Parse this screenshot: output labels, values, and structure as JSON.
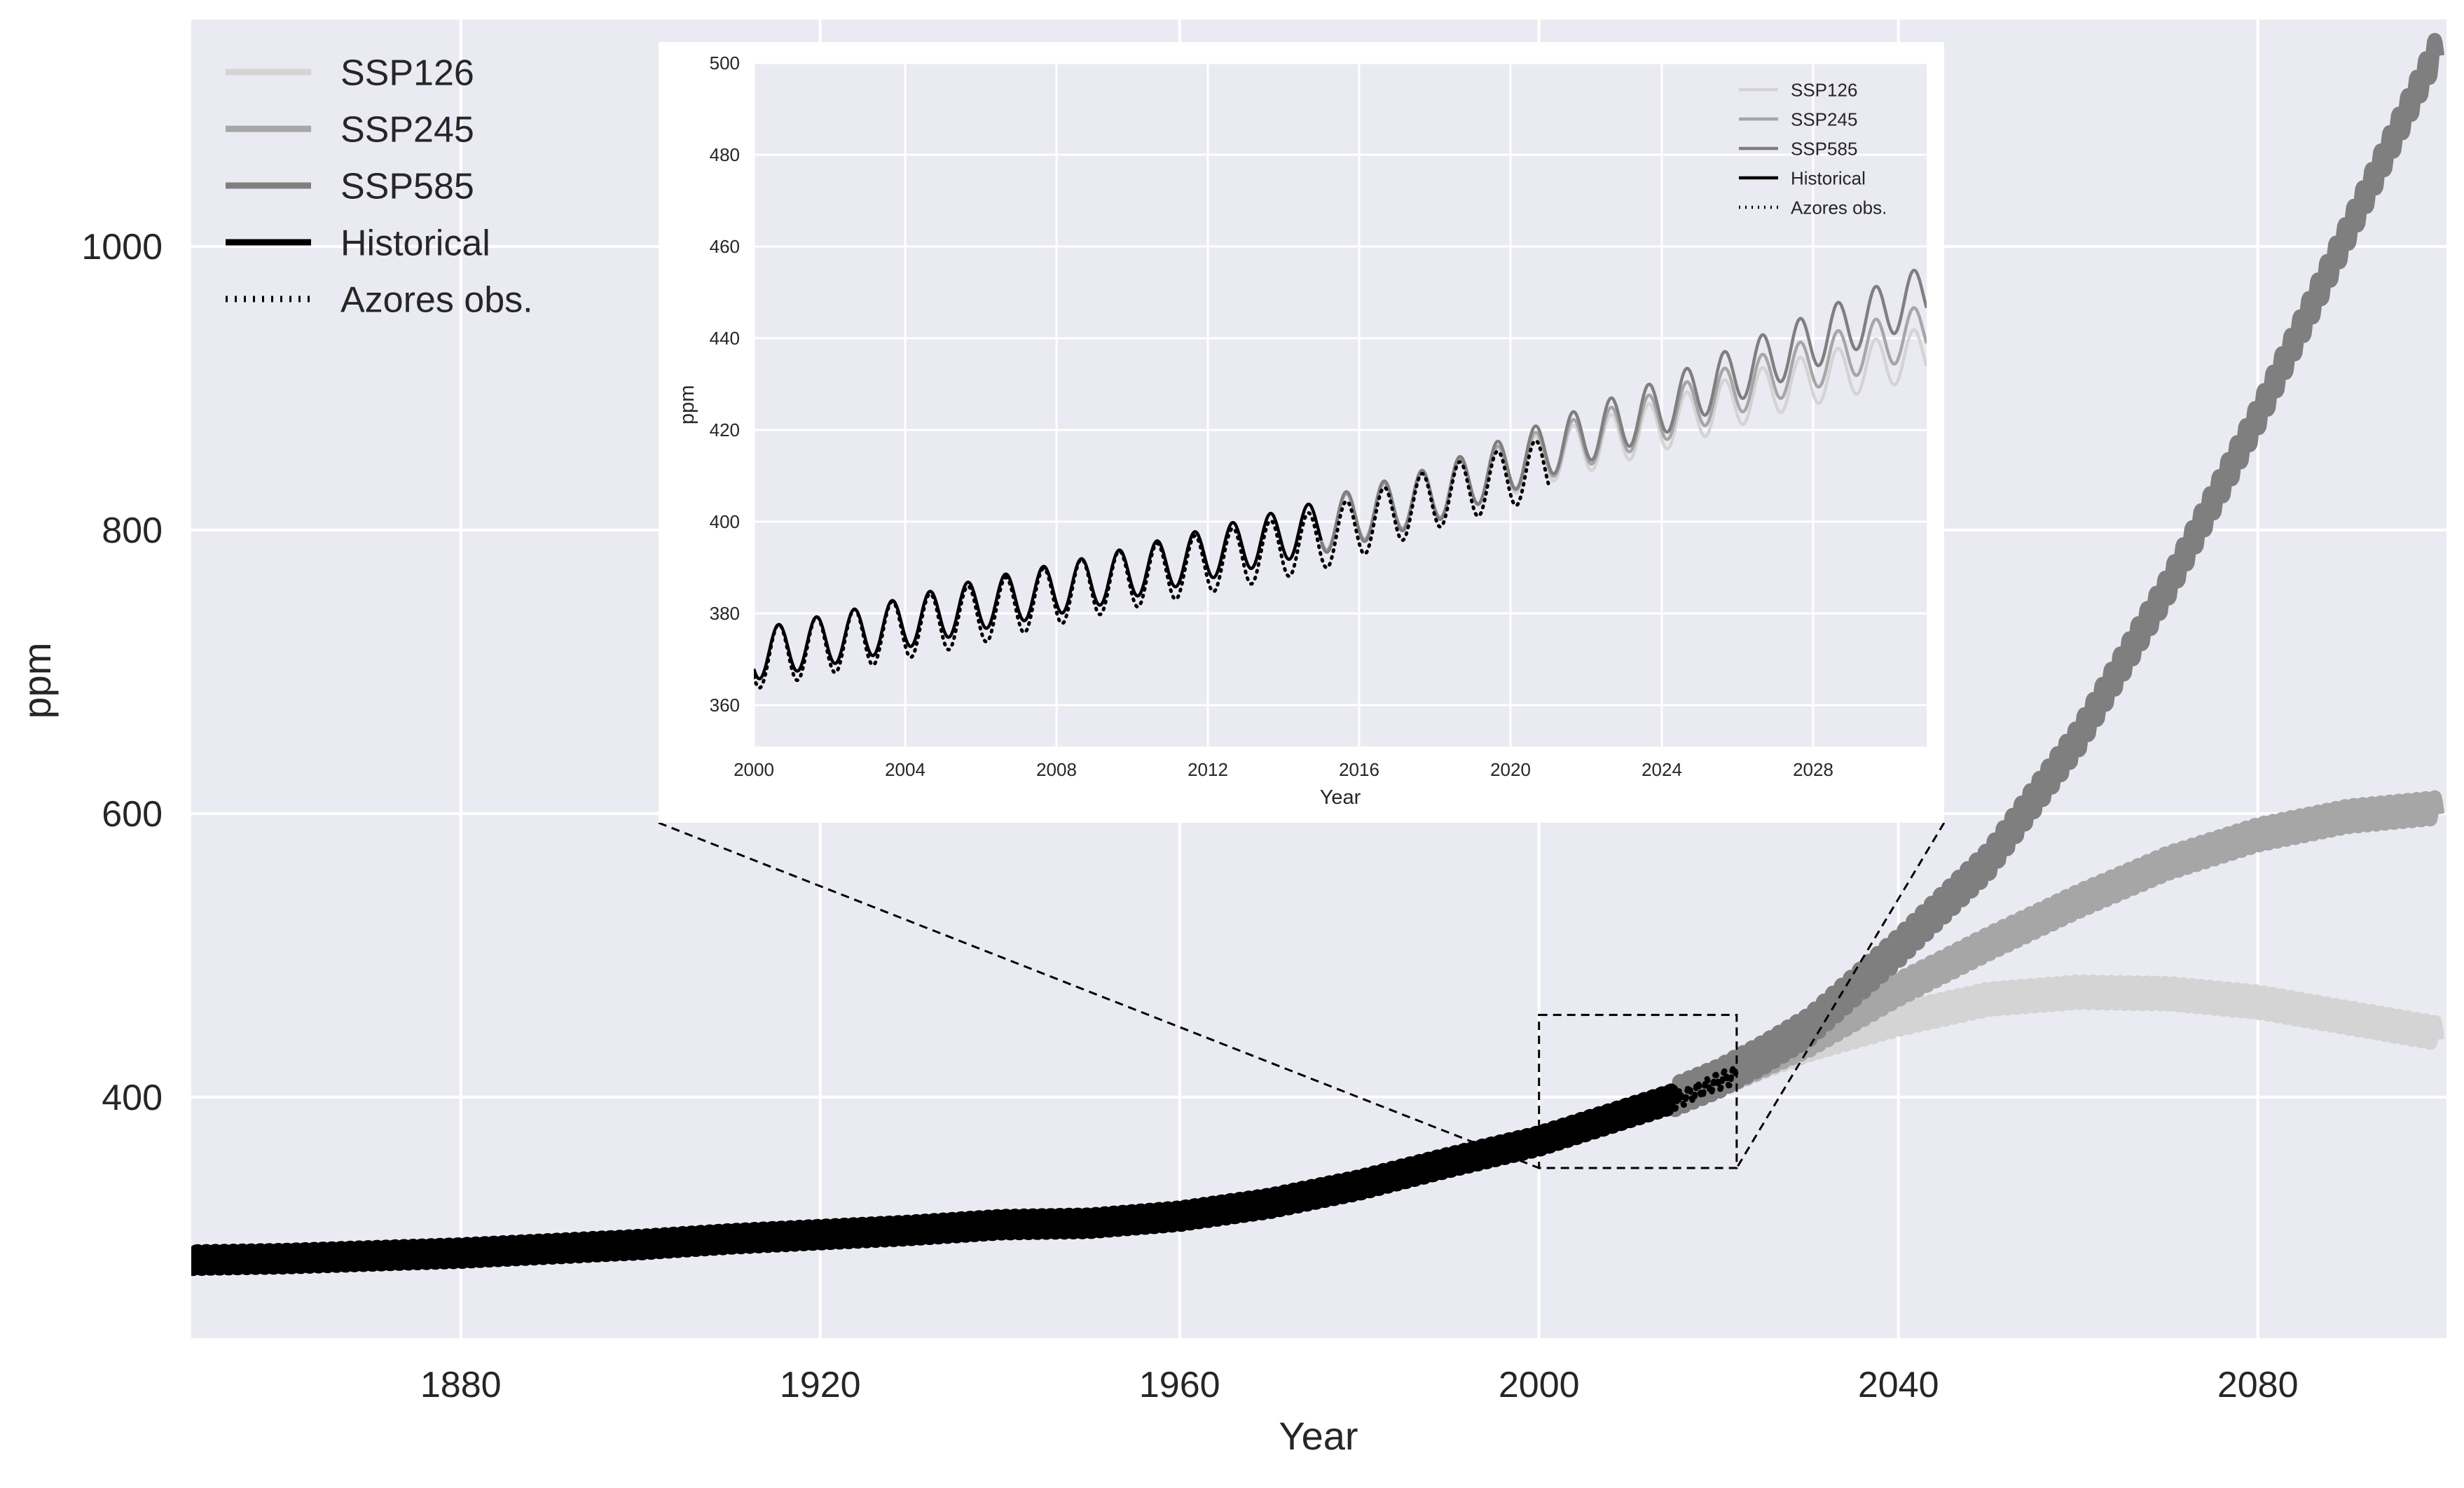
{
  "chart_data": [
    {
      "type": "line",
      "id": "main",
      "title": "",
      "xlabel": "Year",
      "ylabel": "ppm",
      "xlim": [
        1850,
        2101
      ],
      "ylim": [
        230,
        1160
      ],
      "xticks": [
        1880,
        1920,
        1960,
        2000,
        2040,
        2080
      ],
      "yticks": [
        400,
        600,
        800,
        1000
      ],
      "grid": true,
      "legend_position": "top-left",
      "legend": [
        {
          "label": "SSP126",
          "series": "SSP126"
        },
        {
          "label": "SSP245",
          "series": "SSP245"
        },
        {
          "label": "SSP585",
          "series": "SSP585"
        },
        {
          "label": "Historical",
          "series": "Historical"
        },
        {
          "label": "Azores obs.",
          "series": "Azores obs."
        }
      ],
      "series": [
        {
          "name": "Historical",
          "color": "#000000",
          "dash": "solid",
          "x": [
            1850,
            1860,
            1870,
            1880,
            1890,
            1900,
            1910,
            1920,
            1930,
            1940,
            1950,
            1960,
            1970,
            1980,
            1990,
            2000,
            2005,
            2010,
            2015
          ],
          "y": [
            285,
            286,
            288,
            290,
            293,
            296,
            300,
            303,
            306,
            310,
            311,
            316,
            325,
            338,
            354,
            369,
            379,
            389,
            399
          ],
          "seasonal_amplitude": 6
        },
        {
          "name": "SSP126",
          "color": "#d4d4d4",
          "dash": "solid",
          "x": [
            2015,
            2020,
            2025,
            2030,
            2040,
            2050,
            2060,
            2070,
            2080,
            2090,
            2100
          ],
          "y": [
            400,
            412,
            425,
            437,
            455,
            469,
            474,
            473,
            467,
            456,
            445
          ],
          "seasonal_amplitude": 8
        },
        {
          "name": "SSP245",
          "color": "#a6a6a6",
          "dash": "solid",
          "x": [
            2015,
            2020,
            2025,
            2030,
            2040,
            2050,
            2060,
            2070,
            2080,
            2090,
            2100
          ],
          "y": [
            400,
            412,
            426,
            440,
            476,
            508,
            538,
            565,
            585,
            598,
            604
          ],
          "seasonal_amplitude": 8
        },
        {
          "name": "SSP585",
          "color": "#7f7f7f",
          "dash": "solid",
          "x": [
            2015,
            2020,
            2025,
            2030,
            2040,
            2050,
            2060,
            2070,
            2080,
            2090,
            2100
          ],
          "y": [
            400,
            413,
            430,
            449,
            505,
            566,
            653,
            760,
            880,
            1010,
            1140
          ],
          "seasonal_amplitude": 10
        },
        {
          "name": "Azores obs.",
          "color": "#000000",
          "dash": "dotted",
          "x": [
            2000,
            2005,
            2010,
            2015,
            2020,
            2022
          ],
          "y": [
            370,
            378,
            387,
            397,
            411,
            416
          ],
          "seasonal_amplitude": 6
        }
      ],
      "zoom_box": {
        "x": [
          2000,
          2022
        ],
        "y": [
          350,
          458
        ]
      }
    },
    {
      "type": "line",
      "id": "inset",
      "title": "",
      "xlabel": "Year",
      "ylabel": "ppm",
      "xlim": [
        2000,
        2031
      ],
      "ylim": [
        351,
        500
      ],
      "xticks": [
        2000,
        2004,
        2008,
        2012,
        2016,
        2020,
        2024,
        2028
      ],
      "yticks": [
        360,
        380,
        400,
        420,
        440,
        460,
        480,
        500
      ],
      "grid": true,
      "legend_position": "top-right",
      "legend": [
        {
          "label": "SSP126",
          "series": "SSP126"
        },
        {
          "label": "SSP245",
          "series": "SSP245"
        },
        {
          "label": "SSP585",
          "series": "SSP585"
        },
        {
          "label": "Historical",
          "series": "Historical"
        },
        {
          "label": "Azores obs.",
          "series": "Azores obs."
        }
      ],
      "series": [
        {
          "name": "Historical",
          "color": "#000000",
          "dash": "solid",
          "x": [
            2000,
            2003,
            2006,
            2009,
            2012,
            2015
          ],
          "y": [
            371,
            376,
            382,
            387,
            393,
            399
          ],
          "seasonal_amplitude": 5.5
        },
        {
          "name": "SSP126",
          "color": "#d4d4d4",
          "dash": "solid",
          "x": [
            2015,
            2018,
            2021,
            2024,
            2027,
            2031
          ],
          "y": [
            399,
            406,
            414,
            421,
            429,
            437
          ],
          "seasonal_amplitude": 5.5
        },
        {
          "name": "SSP245",
          "color": "#a6a6a6",
          "dash": "solid",
          "x": [
            2015,
            2018,
            2021,
            2024,
            2027,
            2031
          ],
          "y": [
            399,
            406,
            415,
            423,
            432,
            442
          ],
          "seasonal_amplitude": 5.5
        },
        {
          "name": "SSP585",
          "color": "#7f7f7f",
          "dash": "solid",
          "x": [
            2015,
            2018,
            2021,
            2024,
            2027,
            2031
          ],
          "y": [
            399,
            406,
            416,
            425,
            436,
            450
          ],
          "seasonal_amplitude": 6
        },
        {
          "name": "Azores obs.",
          "color": "#000000",
          "dash": "dotted",
          "x": [
            2000,
            2003,
            2006,
            2009,
            2012,
            2015,
            2018,
            2021
          ],
          "y": [
            370,
            375,
            380,
            386,
            391,
            396,
            405,
            412
          ],
          "seasonal_amplitude": 6.5
        }
      ]
    }
  ]
}
